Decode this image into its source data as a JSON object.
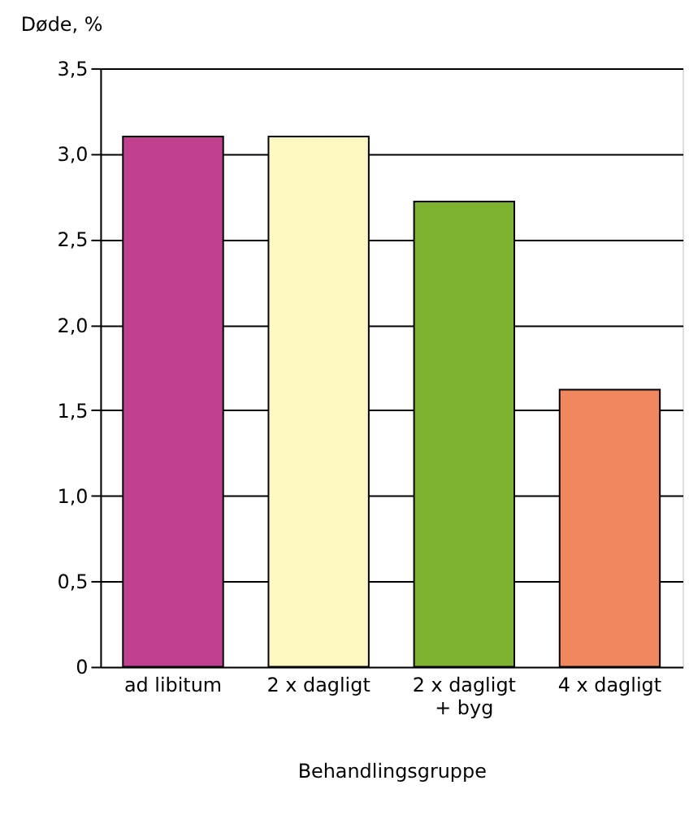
{
  "chart_data": {
    "type": "bar",
    "xlabel": "Behandlingsgruppe",
    "ylabel": "Døde, %",
    "categories": [
      "ad libitum",
      "2 x dagligt",
      "2 x dagligt\n+ byg",
      "4 x dagligt"
    ],
    "values": [
      3.1,
      3.1,
      2.72,
      1.62
    ],
    "colors": [
      "#c1408f",
      "#fdf9c0",
      "#7db32f",
      "#f0875f"
    ],
    "ylim": [
      0,
      3.5
    ],
    "yticks": [
      0,
      {
        "value": 0.5,
        "label": "0,5"
      },
      {
        "value": 1,
        "label": "1,0"
      },
      {
        "value": 1.5,
        "label": "1,5"
      },
      {
        "value": 2,
        "label": "2,0"
      },
      {
        "value": 2.5,
        "label": "2,5"
      },
      {
        "value": 3,
        "label": "3,0"
      },
      {
        "value": 3.5,
        "label": "3,5"
      }
    ],
    "grid": "y"
  }
}
